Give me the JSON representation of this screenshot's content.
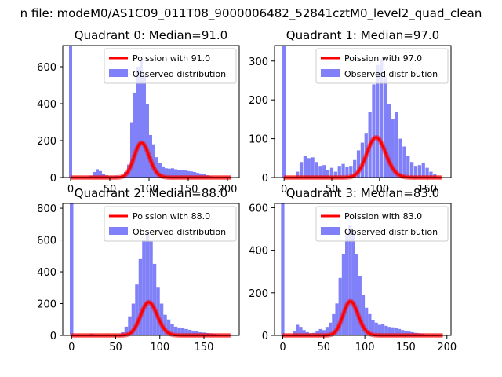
{
  "figure": {
    "suptitle": "n file: modeM0/AS1C09_011T08_9000006482_52841cztM0_level2_quad_clean"
  },
  "colors": {
    "hist": "#8080f8",
    "fit": "#ff0000",
    "axis": "#000000"
  },
  "chart_data": [
    {
      "type": "bar",
      "title": "Quadrant 0: Median=91.0",
      "xlim": [
        -10,
        215
      ],
      "ylim": [
        0,
        715
      ],
      "xticks": [
        0,
        50,
        100,
        150,
        200
      ],
      "yticks": [
        0,
        200,
        400,
        600
      ],
      "bin_width": 4,
      "spike": {
        "x": 0,
        "value": 715
      },
      "hist_bins": [
        [
          22,
          3
        ],
        [
          26,
          10
        ],
        [
          30,
          30
        ],
        [
          34,
          45
        ],
        [
          38,
          35
        ],
        [
          42,
          18
        ],
        [
          46,
          12
        ],
        [
          50,
          8
        ],
        [
          54,
          8
        ],
        [
          58,
          10
        ],
        [
          62,
          8
        ],
        [
          66,
          12
        ],
        [
          70,
          30
        ],
        [
          74,
          70
        ],
        [
          78,
          300
        ],
        [
          82,
          460
        ],
        [
          86,
          600
        ],
        [
          90,
          640
        ],
        [
          94,
          560
        ],
        [
          98,
          400
        ],
        [
          102,
          230
        ],
        [
          106,
          180
        ],
        [
          110,
          110
        ],
        [
          114,
          80
        ],
        [
          118,
          60
        ],
        [
          122,
          50
        ],
        [
          126,
          48
        ],
        [
          130,
          50
        ],
        [
          134,
          45
        ],
        [
          138,
          40
        ],
        [
          142,
          42
        ],
        [
          146,
          38
        ],
        [
          150,
          35
        ],
        [
          154,
          33
        ],
        [
          158,
          30
        ],
        [
          162,
          25
        ],
        [
          166,
          22
        ],
        [
          170,
          18
        ],
        [
          174,
          12
        ],
        [
          178,
          8
        ],
        [
          182,
          5
        ]
      ],
      "legend": {
        "fit_label": "Poission with 91.0",
        "hist_label": "Observed distribution"
      },
      "fit": {
        "mean": 91.0,
        "scale": 4500,
        "x_range": [
          0,
          205
        ]
      }
    },
    {
      "type": "bar",
      "title": "Quadrant 1: Median=97.0",
      "xlim": [
        -10,
        175
      ],
      "ylim": [
        0,
        340
      ],
      "xticks": [
        0,
        50,
        100,
        150
      ],
      "yticks": [
        0,
        100,
        200,
        300
      ],
      "bin_width": 3.5,
      "spike": {
        "x": 0,
        "value": 340
      },
      "hist_bins": [
        [
          14,
          15
        ],
        [
          18,
          40
        ],
        [
          22,
          55
        ],
        [
          26,
          50
        ],
        [
          30,
          52
        ],
        [
          34,
          40
        ],
        [
          38,
          30
        ],
        [
          42,
          32
        ],
        [
          46,
          20
        ],
        [
          50,
          25
        ],
        [
          54,
          15
        ],
        [
          58,
          30
        ],
        [
          62,
          35
        ],
        [
          66,
          28
        ],
        [
          70,
          30
        ],
        [
          74,
          45
        ],
        [
          78,
          70
        ],
        [
          82,
          90
        ],
        [
          86,
          115
        ],
        [
          90,
          170
        ],
        [
          94,
          240
        ],
        [
          98,
          290
        ],
        [
          102,
          305
        ],
        [
          106,
          260
        ],
        [
          110,
          190
        ],
        [
          114,
          150
        ],
        [
          118,
          170
        ],
        [
          122,
          100
        ],
        [
          126,
          80
        ],
        [
          130,
          55
        ],
        [
          134,
          40
        ],
        [
          138,
          30
        ],
        [
          142,
          32
        ],
        [
          146,
          38
        ],
        [
          150,
          25
        ],
        [
          154,
          15
        ],
        [
          158,
          8
        ]
      ],
      "legend": {
        "fit_label": "Poission with 97.0",
        "hist_label": "Observed distribution"
      },
      "fit": {
        "mean": 97.0,
        "scale": 2550,
        "x_range": [
          0,
          165
        ]
      }
    },
    {
      "type": "bar",
      "title": "Quadrant 2: Median=88.0",
      "xlim": [
        -10,
        190
      ],
      "ylim": [
        0,
        830
      ],
      "xticks": [
        0,
        50,
        100,
        150
      ],
      "yticks": [
        0,
        200,
        400,
        600,
        800
      ],
      "bin_width": 4,
      "spike": {
        "x": 0,
        "value": 830
      },
      "hist_bins": [
        [
          14,
          5
        ],
        [
          18,
          5
        ],
        [
          22,
          10
        ],
        [
          26,
          8
        ],
        [
          30,
          5
        ],
        [
          34,
          5
        ],
        [
          38,
          5
        ],
        [
          42,
          8
        ],
        [
          46,
          5
        ],
        [
          50,
          5
        ],
        [
          54,
          8
        ],
        [
          58,
          20
        ],
        [
          62,
          55
        ],
        [
          66,
          120
        ],
        [
          70,
          200
        ],
        [
          74,
          320
        ],
        [
          78,
          480
        ],
        [
          82,
          600
        ],
        [
          86,
          650
        ],
        [
          90,
          590
        ],
        [
          94,
          450
        ],
        [
          98,
          300
        ],
        [
          102,
          200
        ],
        [
          106,
          130
        ],
        [
          110,
          100
        ],
        [
          114,
          70
        ],
        [
          118,
          55
        ],
        [
          122,
          50
        ],
        [
          126,
          45
        ],
        [
          130,
          40
        ],
        [
          134,
          35
        ],
        [
          138,
          30
        ],
        [
          142,
          25
        ],
        [
          146,
          20
        ],
        [
          150,
          18
        ],
        [
          154,
          15
        ],
        [
          158,
          12
        ],
        [
          162,
          10
        ],
        [
          166,
          8
        ],
        [
          170,
          5
        ],
        [
          174,
          4
        ]
      ],
      "legend": {
        "fit_label": "Poission with 88.0",
        "hist_label": "Observed distribution"
      },
      "fit": {
        "mean": 88.0,
        "scale": 4900,
        "x_range": [
          0,
          180
        ]
      }
    },
    {
      "type": "bar",
      "title": "Quadrant 3: Median=83.0",
      "xlim": [
        -10,
        205
      ],
      "ylim": [
        0,
        620
      ],
      "xticks": [
        0,
        50,
        100,
        150,
        200
      ],
      "yticks": [
        0,
        200,
        400,
        600
      ],
      "bin_width": 4,
      "spike": {
        "x": 0,
        "value": 620
      },
      "hist_bins": [
        [
          14,
          20
        ],
        [
          18,
          50
        ],
        [
          22,
          40
        ],
        [
          26,
          25
        ],
        [
          30,
          15
        ],
        [
          34,
          10
        ],
        [
          38,
          12
        ],
        [
          42,
          20
        ],
        [
          46,
          30
        ],
        [
          50,
          25
        ],
        [
          54,
          40
        ],
        [
          58,
          60
        ],
        [
          62,
          100
        ],
        [
          66,
          150
        ],
        [
          70,
          270
        ],
        [
          74,
          380
        ],
        [
          78,
          480
        ],
        [
          82,
          520
        ],
        [
          86,
          490
        ],
        [
          90,
          380
        ],
        [
          94,
          280
        ],
        [
          98,
          190
        ],
        [
          102,
          130
        ],
        [
          106,
          100
        ],
        [
          110,
          70
        ],
        [
          114,
          60
        ],
        [
          118,
          50
        ],
        [
          122,
          55
        ],
        [
          126,
          45
        ],
        [
          130,
          40
        ],
        [
          134,
          38
        ],
        [
          138,
          35
        ],
        [
          142,
          30
        ],
        [
          146,
          25
        ],
        [
          150,
          20
        ],
        [
          154,
          18
        ],
        [
          158,
          15
        ],
        [
          162,
          12
        ],
        [
          166,
          10
        ],
        [
          170,
          8
        ],
        [
          174,
          6
        ]
      ],
      "legend": {
        "fit_label": "Poission with 83.0",
        "hist_label": "Observed distribution"
      },
      "fit": {
        "mean": 83.0,
        "scale": 3650,
        "x_range": [
          0,
          195
        ]
      }
    }
  ]
}
